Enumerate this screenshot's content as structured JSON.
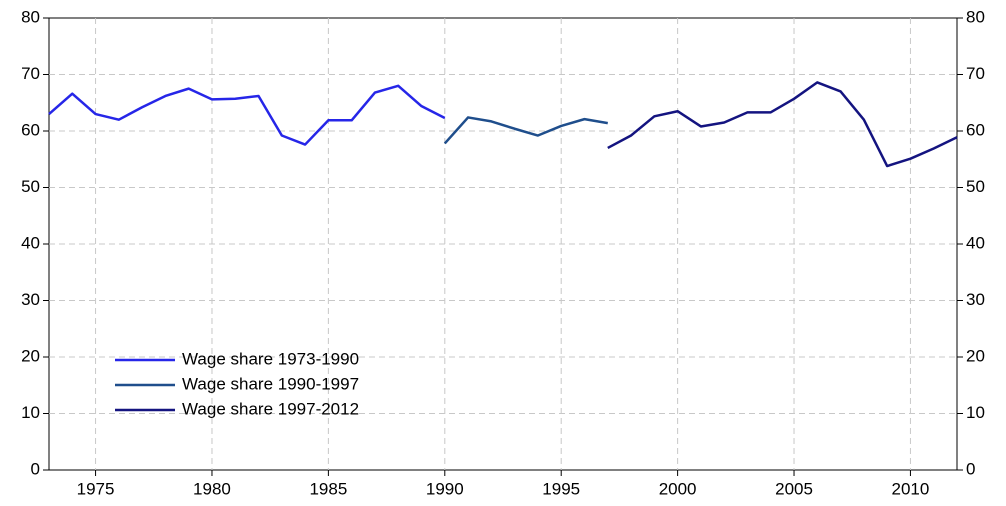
{
  "chart_data": {
    "type": "line",
    "series": [
      {
        "name": "Wage share 1973-1990",
        "color": "#2626e8",
        "x": [
          1973,
          1974,
          1975,
          1976,
          1977,
          1978,
          1979,
          1980,
          1981,
          1982,
          1983,
          1984,
          1985,
          1986,
          1987,
          1988,
          1989,
          1990
        ],
        "values": [
          63.0,
          66.6,
          63.0,
          62.0,
          64.2,
          66.2,
          67.5,
          65.6,
          65.7,
          66.2,
          59.2,
          57.6,
          61.9,
          61.9,
          66.8,
          68.0,
          64.4,
          62.3
        ]
      },
      {
        "name": "Wage share 1990-1997",
        "color": "#1f4e8c",
        "x": [
          1990,
          1991,
          1992,
          1993,
          1994,
          1995,
          1996,
          1997
        ],
        "values": [
          57.8,
          62.4,
          61.7,
          60.4,
          59.2,
          60.9,
          62.1,
          61.4
        ]
      },
      {
        "name": "Wage share 1997-2012",
        "color": "#141480",
        "x": [
          1997,
          1998,
          1999,
          2000,
          2001,
          2002,
          2003,
          2004,
          2005,
          2006,
          2007,
          2008,
          2009,
          2010,
          2011,
          2012
        ],
        "values": [
          57.0,
          59.2,
          62.6,
          63.5,
          60.8,
          61.5,
          63.3,
          63.3,
          65.7,
          68.6,
          67.0,
          62.0,
          53.8,
          55.1,
          56.9,
          58.9
        ]
      }
    ],
    "xlim": [
      1973,
      2012
    ],
    "xticks": [
      1975,
      1980,
      1985,
      1990,
      1995,
      2000,
      2005,
      2010
    ],
    "ylim": [
      0,
      80
    ],
    "yticks": [
      0,
      10,
      20,
      30,
      40,
      50,
      60,
      70,
      80
    ],
    "y2lim": [
      0,
      80
    ],
    "y2ticks": [
      0,
      10,
      20,
      30,
      40,
      50,
      60,
      70,
      80
    ],
    "grid": true,
    "legend": "lower left"
  }
}
